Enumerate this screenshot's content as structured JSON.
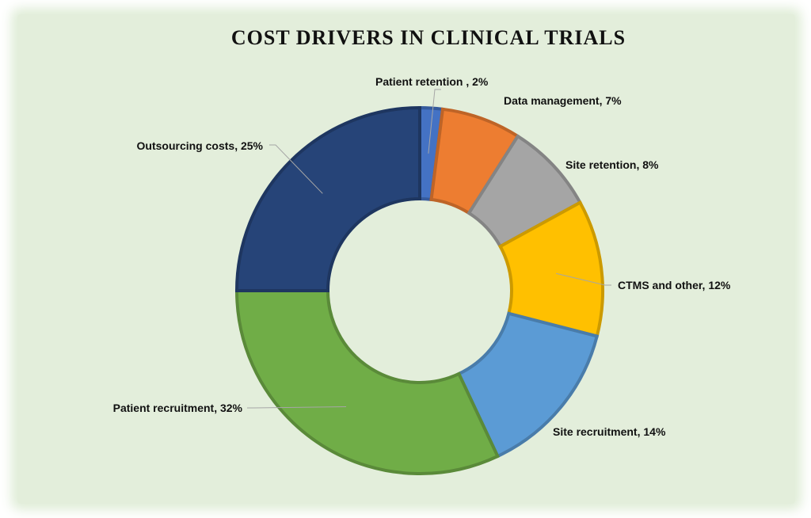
{
  "chart_data": {
    "type": "pie",
    "title": "COST DRIVERS IN CLINICAL TRIALS",
    "hole": true,
    "categories": [
      "Patient retention",
      "Data management",
      "Site retention",
      "CTMS and other",
      "Site recruitment",
      "Patient recruitment",
      "Outsourcing costs"
    ],
    "values": [
      2,
      7,
      8,
      12,
      14,
      32,
      25
    ],
    "labels": [
      "Patient retention , 2%",
      "Data management, 7%",
      "Site retention, 8%",
      "CTMS and other, 12%",
      "Site recruitment, 14%",
      "Patient recruitment, 32%",
      "Outsourcing costs, 25%"
    ],
    "colors": [
      "#4472c4",
      "#ed7d31",
      "#a5a5a5",
      "#ffc000",
      "#5b9bd5",
      "#70ad47",
      "#264478"
    ]
  }
}
